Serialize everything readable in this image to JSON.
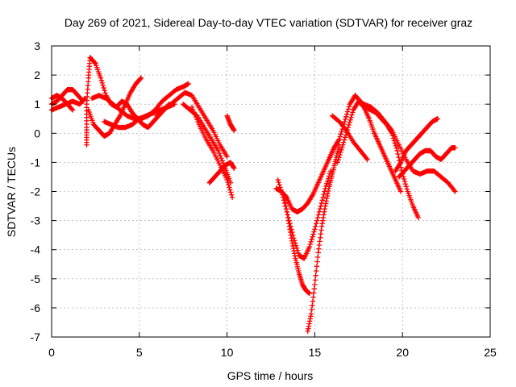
{
  "chart_data": {
    "type": "scatter",
    "title": "Day 269 of 2021, Sidereal Day-to-day VTEC variation (SDTVAR) for receiver graz",
    "xlabel": "GPS time / hours",
    "ylabel": "SDTVAR / TECUs",
    "xlim": [
      0,
      25
    ],
    "ylim": [
      -7,
      3
    ],
    "xticks": [
      0,
      5,
      10,
      15,
      20,
      25
    ],
    "yticks": [
      -7,
      -6,
      -5,
      -4,
      -3,
      -2,
      -1,
      0,
      1,
      2,
      3
    ],
    "grid": true,
    "marker": "plus",
    "color": "#ff0000",
    "series": [
      {
        "name": "track-1",
        "x": [
          0.0,
          0.3,
          0.6,
          0.9,
          1.2,
          1.5,
          1.8
        ],
        "y": [
          1.0,
          1.1,
          1.3,
          1.5,
          1.5,
          1.3,
          1.1
        ]
      },
      {
        "name": "track-2",
        "x": [
          0.0,
          0.3,
          0.6,
          0.9,
          1.2
        ],
        "y": [
          1.2,
          1.3,
          1.2,
          1.0,
          0.8
        ]
      },
      {
        "name": "track-3",
        "x": [
          0.0,
          0.4,
          0.8,
          1.2,
          1.6,
          1.9
        ],
        "y": [
          0.8,
          0.9,
          1.0,
          1.1,
          1.0,
          1.2
        ]
      },
      {
        "name": "track-4",
        "x": [
          2.0,
          2.0,
          2.0,
          2.1,
          2.2
        ],
        "y": [
          -0.4,
          0.2,
          1.0,
          1.9,
          2.6
        ]
      },
      {
        "name": "track-5",
        "x": [
          2.2,
          2.5,
          2.8,
          3.1,
          3.4,
          3.7,
          4.0,
          4.3,
          4.6,
          4.9,
          5.2,
          5.5,
          5.8,
          6.1,
          6.4,
          6.7
        ],
        "y": [
          2.6,
          2.4,
          1.9,
          1.3,
          1.0,
          0.9,
          1.1,
          1.0,
          0.7,
          0.5,
          0.3,
          0.2,
          0.4,
          0.6,
          0.8,
          1.0
        ]
      },
      {
        "name": "track-6",
        "x": [
          2.1,
          2.4,
          2.7,
          3.0,
          3.3,
          3.6,
          3.9,
          4.2,
          4.5,
          4.8,
          5.1
        ],
        "y": [
          0.8,
          0.3,
          0.1,
          -0.1,
          0.0,
          0.3,
          0.6,
          1.0,
          1.4,
          1.7,
          1.9
        ]
      },
      {
        "name": "track-7",
        "x": [
          2.3,
          2.7,
          3.1,
          3.5,
          3.9,
          4.3,
          4.7,
          5.1,
          5.5,
          5.9,
          6.3,
          6.7,
          7.1,
          7.5,
          7.8
        ],
        "y": [
          1.2,
          1.3,
          1.2,
          1.0,
          0.8,
          0.6,
          0.5,
          0.5,
          0.6,
          0.8,
          1.1,
          1.3,
          1.5,
          1.6,
          1.7
        ]
      },
      {
        "name": "track-8",
        "x": [
          3.0,
          3.4,
          3.8,
          4.2,
          4.6,
          5.0,
          5.4,
          5.8,
          6.2,
          6.6,
          7.0
        ],
        "y": [
          0.4,
          0.3,
          0.2,
          0.2,
          0.3,
          0.5,
          0.6,
          0.7,
          0.8,
          0.9,
          1.0
        ]
      },
      {
        "name": "track-9",
        "x": [
          6.0,
          6.4,
          6.8,
          7.2,
          7.6,
          8.0,
          8.4,
          8.8,
          9.2,
          9.6,
          10.0
        ],
        "y": [
          0.6,
          0.8,
          1.0,
          1.2,
          1.4,
          1.3,
          0.9,
          0.5,
          0.1,
          -0.4,
          -0.8
        ]
      },
      {
        "name": "track-10",
        "x": [
          7.5,
          7.9,
          8.3,
          8.7,
          9.1,
          9.5,
          9.9,
          10.2
        ],
        "y": [
          1.0,
          0.8,
          0.6,
          0.2,
          -0.2,
          -0.6,
          -1.2,
          -1.7
        ]
      },
      {
        "name": "track-11",
        "x": [
          8.0,
          8.4,
          8.8,
          9.2,
          9.6,
          10.0,
          10.3
        ],
        "y": [
          0.9,
          0.3,
          -0.2,
          -0.6,
          -1.1,
          -1.6,
          -2.2
        ]
      },
      {
        "name": "track-12",
        "x": [
          9.0,
          9.3,
          9.6,
          9.9,
          10.2,
          10.4
        ],
        "y": [
          -1.7,
          -1.5,
          -1.3,
          -1.1,
          -1.0,
          -1.2
        ]
      },
      {
        "name": "track-13",
        "x": [
          10.0,
          10.2,
          10.4
        ],
        "y": [
          0.6,
          0.3,
          0.1
        ]
      },
      {
        "name": "track-14",
        "x": [
          12.8,
          13.1,
          13.4,
          13.7,
          14.0,
          14.3,
          14.6,
          14.9,
          15.2,
          15.5,
          15.8,
          16.1
        ],
        "y": [
          -1.9,
          -2.0,
          -2.2,
          -2.6,
          -2.7,
          -2.6,
          -2.4,
          -2.1,
          -1.7,
          -1.3,
          -0.9,
          -0.5
        ]
      },
      {
        "name": "track-15",
        "x": [
          12.9,
          13.2,
          13.5,
          13.8,
          14.1,
          14.4,
          14.7,
          15.0,
          15.3,
          15.6,
          15.9
        ],
        "y": [
          -1.6,
          -2.2,
          -2.9,
          -3.6,
          -4.2,
          -4.3,
          -3.9,
          -3.3,
          -2.6,
          -1.9,
          -1.3
        ]
      },
      {
        "name": "track-16",
        "x": [
          13.3,
          13.5,
          13.7,
          13.9,
          14.1,
          14.3,
          14.5,
          14.7
        ],
        "y": [
          -2.3,
          -3.0,
          -3.7,
          -4.3,
          -4.8,
          -5.2,
          -5.4,
          -5.5
        ]
      },
      {
        "name": "track-17",
        "x": [
          14.6,
          14.8,
          15.0,
          15.2,
          15.4,
          15.6,
          15.8,
          16.0,
          16.2,
          16.4
        ],
        "y": [
          -6.8,
          -6.2,
          -5.2,
          -4.1,
          -3.2,
          -2.5,
          -1.9,
          -1.4,
          -0.9,
          -0.4
        ]
      },
      {
        "name": "track-18",
        "x": [
          15.8,
          16.1,
          16.4,
          16.7,
          17.0,
          17.3,
          17.6,
          17.9,
          18.2,
          18.5,
          18.8,
          19.1,
          19.4,
          19.7,
          20.0,
          20.3,
          20.6,
          20.9
        ],
        "y": [
          -0.9,
          -0.5,
          -0.2,
          0.4,
          1.0,
          1.3,
          1.1,
          0.9,
          0.8,
          0.7,
          0.5,
          0.3,
          0.0,
          -0.6,
          -1.4,
          -2.0,
          -2.5,
          -2.9
        ]
      },
      {
        "name": "track-19",
        "x": [
          16.3,
          16.6,
          16.9,
          17.2,
          17.5,
          17.8,
          18.1,
          18.4,
          18.7,
          19.0,
          19.3,
          19.6,
          19.9
        ],
        "y": [
          -1.0,
          -0.4,
          0.2,
          0.8,
          1.1,
          0.9,
          0.5,
          0.0,
          -0.4,
          -0.8,
          -1.2,
          -1.6,
          -2.0
        ]
      },
      {
        "name": "track-20",
        "x": [
          17.8,
          18.2,
          18.6,
          19.0,
          19.4,
          19.8,
          20.2,
          20.6,
          21.0,
          21.4,
          21.8,
          22.2,
          22.6,
          23.0
        ],
        "y": [
          1.0,
          0.9,
          0.7,
          0.4,
          0.1,
          -0.4,
          -0.9,
          -1.3,
          -1.4,
          -1.3,
          -1.3,
          -1.5,
          -1.7,
          -2.0
        ]
      },
      {
        "name": "track-21",
        "x": [
          19.6,
          19.9,
          20.2,
          20.5,
          20.8,
          21.1,
          21.4,
          21.7,
          22.0
        ],
        "y": [
          -1.3,
          -1.0,
          -0.6,
          -0.4,
          -0.2,
          0.0,
          0.2,
          0.4,
          0.5
        ]
      },
      {
        "name": "track-22",
        "x": [
          19.8,
          20.1,
          20.4,
          20.7,
          21.0,
          21.3,
          21.6,
          21.9,
          22.2,
          22.5,
          22.8,
          23.0
        ],
        "y": [
          -1.5,
          -1.3,
          -1.1,
          -0.9,
          -0.7,
          -0.6,
          -0.6,
          -0.8,
          -0.9,
          -0.7,
          -0.5,
          -0.5
        ]
      },
      {
        "name": "track-23",
        "x": [
          16.0,
          16.4,
          16.8,
          17.2,
          17.6,
          18.0
        ],
        "y": [
          0.6,
          0.4,
          0.1,
          -0.3,
          -0.6,
          -0.9
        ]
      }
    ]
  }
}
